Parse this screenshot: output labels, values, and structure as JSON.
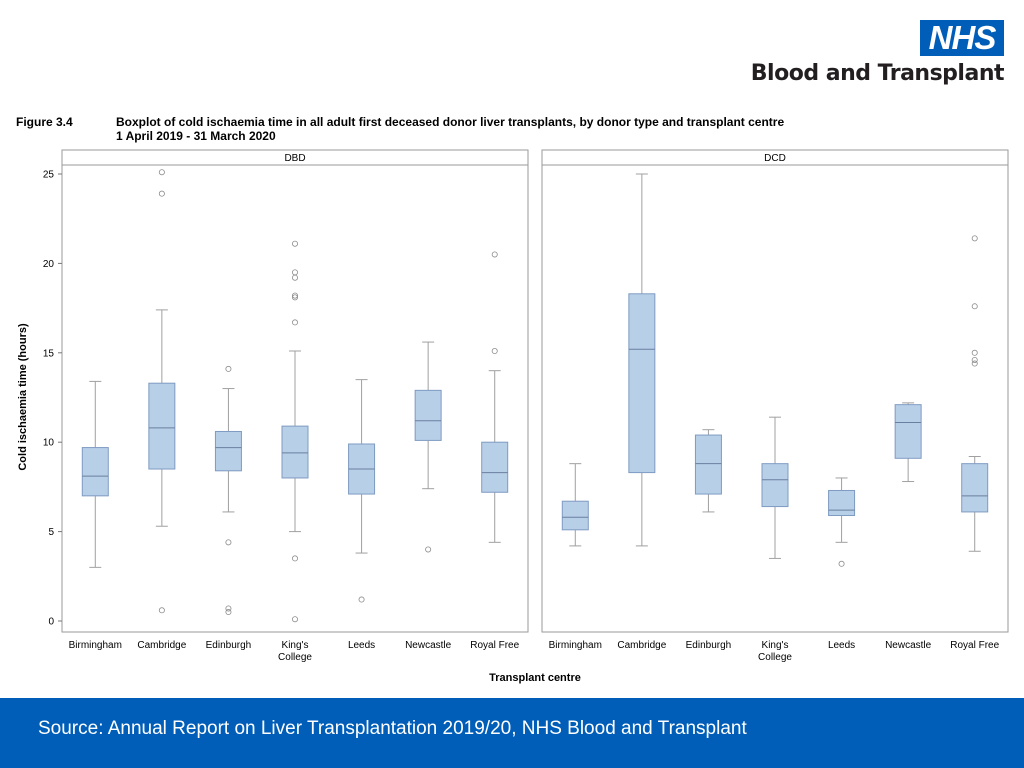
{
  "logo": {
    "badge": "NHS",
    "org": "Blood and Transplant"
  },
  "figure": {
    "label": "Figure 3.4",
    "title_line1": "Boxplot of cold ischaemia time in all adult first deceased donor liver transplants, by donor type and transplant centre",
    "title_line2": "1 April 2019 - 31 March 2020"
  },
  "footer": {
    "source": "Source: Annual Report on Liver Transplantation 2019/20, NHS Blood and Transplant"
  },
  "colors": {
    "box_fill": "#B8CFE8",
    "box_stroke": "#7F9BC2",
    "outlier": "#8C8C8C",
    "footer_bg": "#005EB8",
    "nhs_blue": "#005EB8"
  },
  "chart_data": {
    "type": "boxplot",
    "xlabel": "Transplant centre",
    "ylabel": "Cold ischaemia time (hours)",
    "ylim": [
      0,
      25
    ],
    "yticks": [
      0,
      5,
      10,
      15,
      20,
      25
    ],
    "panels": [
      {
        "title": "DBD",
        "categories": [
          {
            "label": [
              "Birmingham"
            ],
            "min": 3.0,
            "q1": 7.0,
            "median": 8.1,
            "q3": 9.7,
            "max": 13.4,
            "outliers": []
          },
          {
            "label": [
              "Cambridge"
            ],
            "min": 5.3,
            "q1": 8.5,
            "median": 10.8,
            "q3": 13.3,
            "max": 17.4,
            "outliers": [
              0.6,
              23.9,
              25.1
            ]
          },
          {
            "label": [
              "Edinburgh"
            ],
            "min": 6.1,
            "q1": 8.4,
            "median": 9.7,
            "q3": 10.6,
            "max": 13.0,
            "outliers": [
              0.5,
              0.7,
              4.4,
              14.1
            ]
          },
          {
            "label": [
              "King's",
              "College"
            ],
            "min": 5.0,
            "q1": 8.0,
            "median": 9.4,
            "q3": 10.9,
            "max": 15.1,
            "outliers": [
              0.1,
              3.5,
              16.7,
              18.1,
              18.2,
              19.2,
              19.5,
              21.1
            ]
          },
          {
            "label": [
              "Leeds"
            ],
            "min": 3.8,
            "q1": 7.1,
            "median": 8.5,
            "q3": 9.9,
            "max": 13.5,
            "outliers": [
              1.2
            ]
          },
          {
            "label": [
              "Newcastle"
            ],
            "min": 7.4,
            "q1": 10.1,
            "median": 11.2,
            "q3": 12.9,
            "max": 15.6,
            "outliers": [
              4.0
            ]
          },
          {
            "label": [
              "Royal Free"
            ],
            "min": 4.4,
            "q1": 7.2,
            "median": 8.3,
            "q3": 10.0,
            "max": 14.0,
            "outliers": [
              15.1,
              20.5
            ]
          }
        ]
      },
      {
        "title": "DCD",
        "categories": [
          {
            "label": [
              "Birmingham"
            ],
            "min": 4.2,
            "q1": 5.1,
            "median": 5.8,
            "q3": 6.7,
            "max": 8.8,
            "outliers": []
          },
          {
            "label": [
              "Cambridge"
            ],
            "min": 4.2,
            "q1": 8.3,
            "median": 15.2,
            "q3": 18.3,
            "max": 25.0,
            "outliers": []
          },
          {
            "label": [
              "Edinburgh"
            ],
            "min": 6.1,
            "q1": 7.1,
            "median": 8.8,
            "q3": 10.4,
            "max": 10.7,
            "outliers": []
          },
          {
            "label": [
              "King's",
              "College"
            ],
            "min": 3.5,
            "q1": 6.4,
            "median": 7.9,
            "q3": 8.8,
            "max": 11.4,
            "outliers": []
          },
          {
            "label": [
              "Leeds"
            ],
            "min": 4.4,
            "q1": 5.9,
            "median": 6.2,
            "q3": 7.3,
            "max": 8.0,
            "outliers": [
              3.2
            ]
          },
          {
            "label": [
              "Newcastle"
            ],
            "min": 7.8,
            "q1": 9.1,
            "median": 11.1,
            "q3": 12.1,
            "max": 12.2,
            "outliers": []
          },
          {
            "label": [
              "Royal Free"
            ],
            "min": 3.9,
            "q1": 6.1,
            "median": 7.0,
            "q3": 8.8,
            "max": 9.2,
            "outliers": [
              14.4,
              14.6,
              15.0,
              17.6,
              21.4
            ]
          }
        ]
      }
    ]
  }
}
